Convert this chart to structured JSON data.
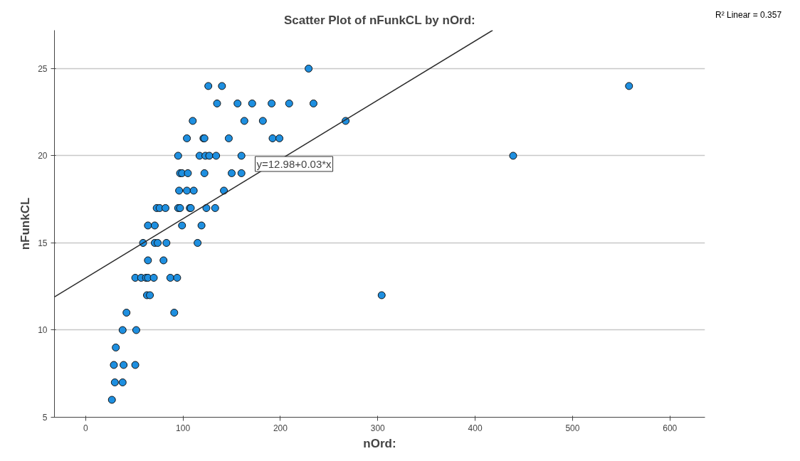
{
  "chart_data": {
    "type": "scatter",
    "title": "Scatter Plot of nFunkCL by nOrd:",
    "xlabel": "nOrd:",
    "ylabel": "nFunkCL",
    "xlim": [
      -32,
      636
    ],
    "ylim": [
      5,
      27.2
    ],
    "xticks": [
      0,
      100,
      200,
      300,
      400,
      500,
      600
    ],
    "yticks": [
      5,
      10,
      15,
      20,
      25
    ],
    "grid": "y",
    "series": [
      {
        "marker": "circle",
        "color": "#1e8fe0",
        "x": [
          229,
          126,
          140,
          558,
          135,
          156,
          171,
          191,
          209,
          234,
          110,
          163,
          182,
          267,
          104,
          121,
          122,
          147,
          192,
          199,
          95,
          117,
          123,
          127,
          134,
          160,
          439,
          97,
          99,
          105,
          122,
          150,
          160,
          96,
          104,
          111,
          142,
          73,
          76,
          82,
          95,
          97,
          107,
          108,
          124,
          133,
          64,
          71,
          99,
          119,
          59,
          71,
          74,
          83,
          115,
          64,
          80,
          51,
          57,
          62,
          64,
          70,
          87,
          94,
          63,
          66,
          304,
          42,
          91,
          38,
          52,
          31,
          29,
          39,
          51,
          30,
          38,
          27
        ],
        "values": [
          25,
          24,
          24,
          24,
          23,
          23,
          23,
          23,
          23,
          23,
          22,
          22,
          22,
          22,
          21,
          21,
          21,
          21,
          21,
          21,
          20,
          20,
          20,
          20,
          20,
          20,
          20,
          19,
          19,
          19,
          19,
          19,
          19,
          18,
          18,
          18,
          18,
          17,
          17,
          17,
          17,
          17,
          17,
          17,
          17,
          17,
          16,
          16,
          16,
          16,
          15,
          15,
          15,
          15,
          15,
          14,
          14,
          13,
          13,
          13,
          13,
          13,
          13,
          13,
          12,
          12,
          12,
          11,
          11,
          10,
          10,
          9,
          8,
          8,
          8,
          7,
          7,
          6
        ]
      },
      {
        "type": "line",
        "color": "#2b2b2b",
        "x": [
          -32,
          418
        ],
        "values": [
          11.9,
          27.2
        ]
      }
    ],
    "annotations": [
      "y=12.98+0.03*x",
      "R² Linear = 0.357"
    ]
  }
}
